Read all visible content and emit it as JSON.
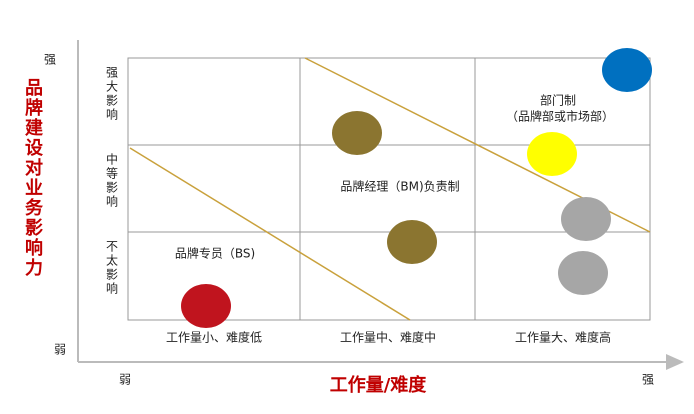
{
  "y_axis": {
    "title": "品牌建设对业务影响力",
    "high": "强",
    "low": "弱"
  },
  "x_axis": {
    "title": "工作量/难度",
    "high": "强",
    "low": "弱"
  },
  "rows": [
    "强大影响",
    "中等影响",
    "不太影响"
  ],
  "columns": [
    "工作量小、难度低",
    "工作量中、难度中",
    "工作量大、难度高"
  ],
  "zones": [
    {
      "label": "品牌专员（BS)"
    },
    {
      "label": "品牌经理（BM)负责制"
    },
    {
      "label": "部门制",
      "note": "（品牌部或市场部）"
    }
  ]
}
